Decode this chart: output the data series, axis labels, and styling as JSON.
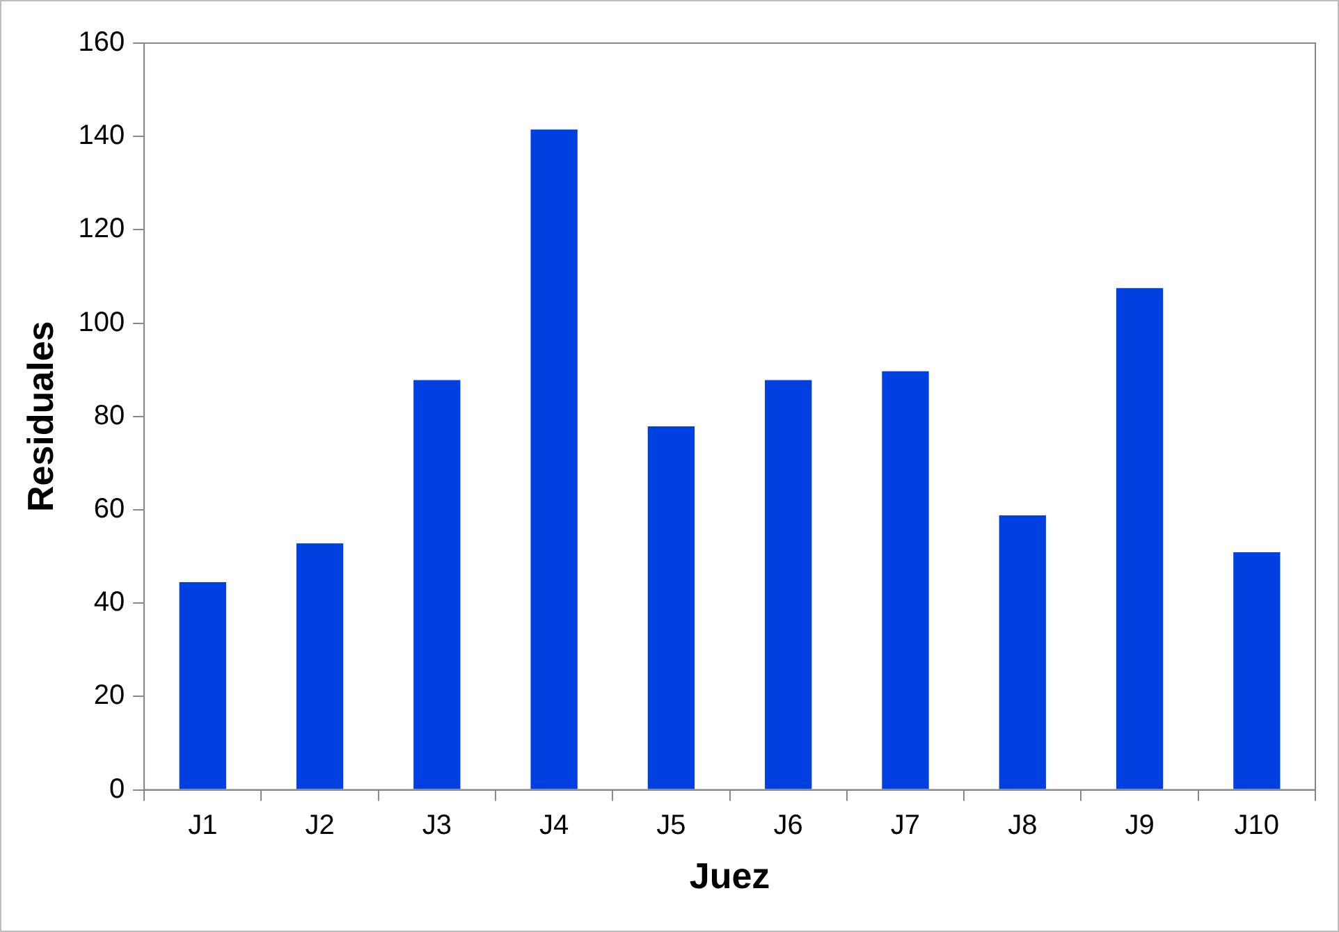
{
  "chart_data": {
    "type": "bar",
    "xlabel": "Juez",
    "ylabel": "Residuales",
    "categories": [
      "J1",
      "J2",
      "J3",
      "J4",
      "J5",
      "J6",
      "J7",
      "J8",
      "J9",
      "J10"
    ],
    "values": [
      44.5,
      52.8,
      87.8,
      141.5,
      77.9,
      87.8,
      89.7,
      58.8,
      107.5,
      50.9
    ],
    "color": "#0040e0",
    "ylim": [
      0,
      160
    ],
    "yticks": [
      0,
      20,
      40,
      60,
      80,
      100,
      120,
      140,
      160
    ],
    "grid": false,
    "legend": false
  }
}
